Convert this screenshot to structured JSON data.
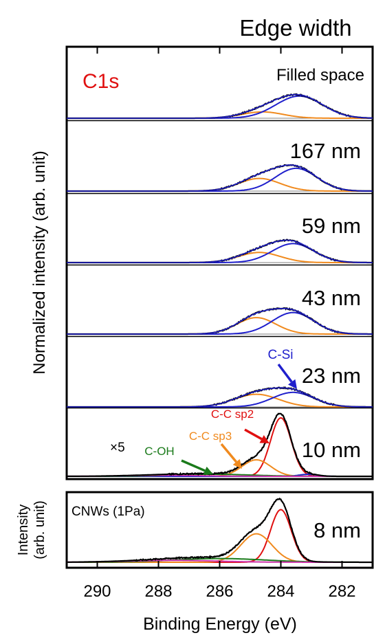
{
  "header": {
    "title": "Edge width"
  },
  "colors": {
    "measured": "#000000",
    "csi": "#1f1fcc",
    "ccsp3": "#f08a1e",
    "ccsp2": "#e01010",
    "coh": "#1a7a1a",
    "extra": "#cc33aa",
    "baseline": "#808080",
    "c1s_label": "#e01010"
  },
  "main_panel": {
    "element_label": "C1s",
    "multiplier_label": "×5",
    "ylabel": "Normalized intensity (arb. unit)",
    "annotations": {
      "c_si": "C-Si",
      "c_c_sp2": "C-C sp2",
      "c_c_sp3": "C-C sp3",
      "c_oh": "C-OH"
    }
  },
  "bottom_panel": {
    "sample_label": "CNWs (1Pa)",
    "ylabel_line1": "Intensity",
    "ylabel_line2": "(arb. unit)"
  },
  "x_axis": {
    "label": "Binding Energy (eV)"
  },
  "chart_data": {
    "type": "line",
    "xlabel": "Binding Energy (eV)",
    "ylabel": "Normalized intensity (arb. unit)",
    "xlim": [
      291,
      281
    ],
    "x_reversed": true,
    "x_ticks": [
      290,
      288,
      286,
      284,
      282
    ],
    "spectra": [
      {
        "label": "Filled space",
        "components": [
          {
            "name": "C-C sp3",
            "center": 284.6,
            "height": 0.1,
            "fwhm": 1.6
          },
          {
            "name": "C-Si",
            "center": 283.4,
            "height": 0.35,
            "fwhm": 1.8
          }
        ]
      },
      {
        "label": "167 nm",
        "components": [
          {
            "name": "C-C sp3",
            "center": 284.7,
            "height": 0.2,
            "fwhm": 1.6
          },
          {
            "name": "C-Si",
            "center": 283.5,
            "height": 0.36,
            "fwhm": 1.6
          }
        ]
      },
      {
        "label": "59 nm",
        "components": [
          {
            "name": "C-C sp3",
            "center": 284.7,
            "height": 0.16,
            "fwhm": 1.6
          },
          {
            "name": "C-Si",
            "center": 283.6,
            "height": 0.3,
            "fwhm": 1.6
          }
        ]
      },
      {
        "label": "43 nm",
        "components": [
          {
            "name": "C-C sp3",
            "center": 284.8,
            "height": 0.26,
            "fwhm": 1.5
          },
          {
            "name": "C-Si",
            "center": 283.6,
            "height": 0.34,
            "fwhm": 1.6
          }
        ]
      },
      {
        "label": "23 nm",
        "components": [
          {
            "name": "C-C sp3",
            "center": 284.8,
            "height": 0.2,
            "fwhm": 1.7
          },
          {
            "name": "C-Si",
            "center": 283.6,
            "height": 0.23,
            "fwhm": 1.6
          }
        ]
      },
      {
        "label": "10 nm",
        "components": [
          {
            "name": "C-C sp2",
            "center": 284.0,
            "height": 0.85,
            "fwhm": 0.8
          },
          {
            "name": "C-C sp3",
            "center": 284.8,
            "height": 0.24,
            "fwhm": 1.1
          },
          {
            "name": "C-Si",
            "center": 283.1,
            "height": 0.03,
            "fwhm": 0.7
          },
          {
            "name": "C-OH",
            "center": 286.2,
            "height": 0.03,
            "fwhm": 3.0
          },
          {
            "name": "extra",
            "center": 287.8,
            "height": 0.015,
            "fwhm": 3.0
          }
        ]
      },
      {
        "label": "8 nm",
        "components": [
          {
            "name": "C-C sp2",
            "center": 284.0,
            "height": 0.85,
            "fwhm": 0.8
          },
          {
            "name": "C-C sp3",
            "center": 284.8,
            "height": 0.46,
            "fwhm": 1.2
          },
          {
            "name": "C-OH",
            "center": 286.0,
            "height": 0.06,
            "fwhm": 3.5
          },
          {
            "name": "extra",
            "center": 287.5,
            "height": 0.03,
            "fwhm": 3.5
          }
        ]
      }
    ]
  }
}
